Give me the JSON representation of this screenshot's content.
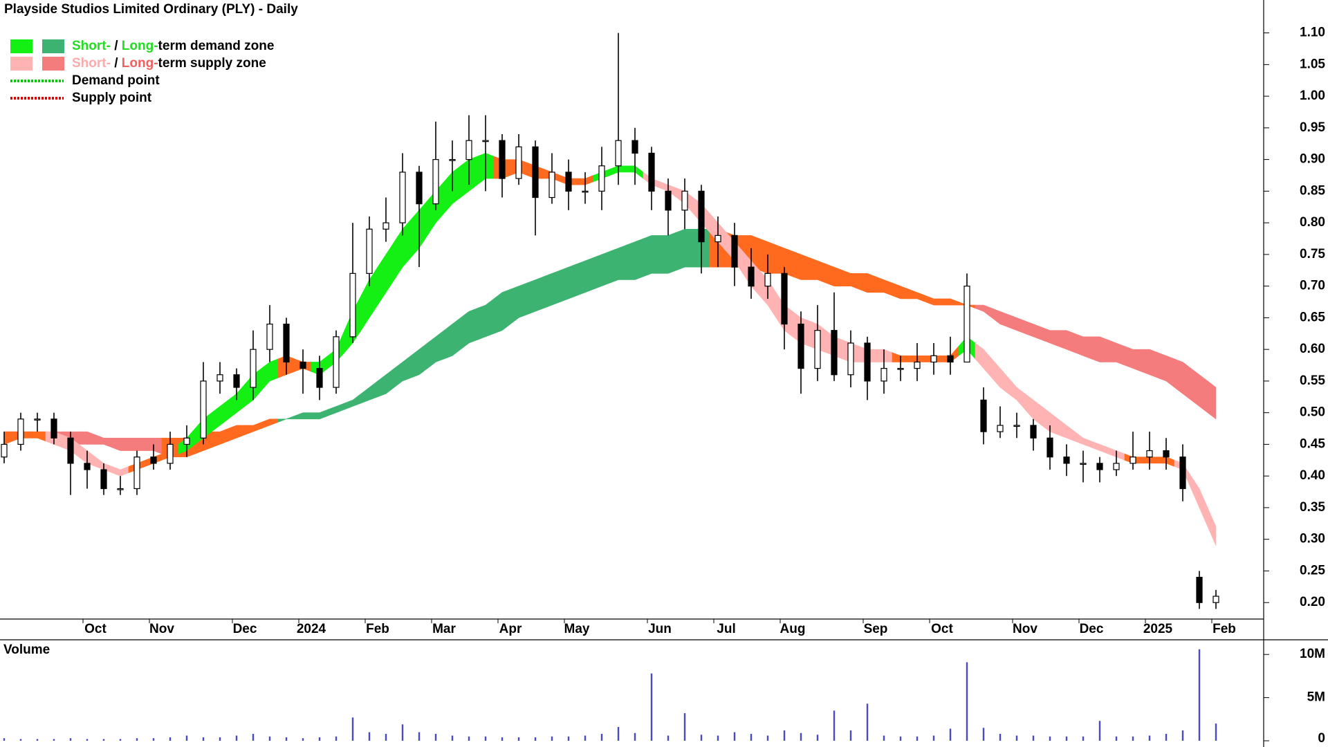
{
  "chart_data": {
    "type": "candlestick",
    "title": "Playside Studios Limited Ordinary (PLY) - Daily",
    "legend": [
      {
        "swatches": [
          "#14f014",
          "#3cb371"
        ],
        "parts": [
          {
            "text": "Short-",
            "color": "#22dd22"
          },
          {
            "text": " / ",
            "color": "#000000"
          },
          {
            "text": "Long-",
            "color": "#22dd22"
          },
          {
            "text": "term demand zone",
            "color": "#000000"
          }
        ]
      },
      {
        "swatches": [
          "#ffb3b3",
          "#f47c7c"
        ],
        "parts": [
          {
            "text": "Short-",
            "color": "#ffaaaa"
          },
          {
            "text": " / ",
            "color": "#000000"
          },
          {
            "text": "Long-",
            "color": "#f06060"
          },
          {
            "text": "term supply zone",
            "color": "#000000"
          }
        ]
      },
      {
        "line_color": "#00cc00",
        "parts": [
          {
            "text": "Demand point",
            "color": "#000000"
          }
        ]
      },
      {
        "line_color": "#e00000",
        "parts": [
          {
            "text": "Supply point",
            "color": "#000000"
          }
        ]
      }
    ],
    "categories": [
      null,
      null,
      null,
      null,
      null,
      "Oct",
      null,
      null,
      null,
      "Nov",
      null,
      null,
      null,
      null,
      "Dec",
      null,
      null,
      null,
      "2024",
      null,
      null,
      null,
      "Feb",
      null,
      null,
      null,
      "Mar",
      null,
      null,
      null,
      "Apr",
      null,
      null,
      null,
      "May",
      null,
      null,
      null,
      null,
      "Jun",
      null,
      null,
      null,
      "Jul",
      null,
      null,
      null,
      "Aug",
      null,
      null,
      null,
      null,
      "Sep",
      null,
      null,
      null,
      "Oct",
      null,
      null,
      null,
      null,
      "Nov",
      null,
      null,
      null,
      "Dec",
      null,
      null,
      null,
      "2025",
      null,
      null,
      null,
      "Feb"
    ],
    "open": [
      0.43,
      0.45,
      0.49,
      0.49,
      0.46,
      0.42,
      0.41,
      0.38,
      0.38,
      0.43,
      0.42,
      0.45,
      0.46,
      0.55,
      0.56,
      0.54,
      0.6,
      0.64,
      0.58,
      0.57,
      0.54,
      0.62,
      0.72,
      0.79,
      0.8,
      0.88,
      0.83,
      0.9,
      0.9,
      0.93,
      0.93,
      0.87,
      0.92,
      0.84,
      0.88,
      0.85,
      0.85,
      0.89,
      0.93,
      0.91,
      0.85,
      0.82,
      0.85,
      0.77,
      0.78,
      0.73,
      0.7,
      0.72,
      0.64,
      0.57,
      0.63,
      0.56,
      0.61,
      0.55,
      0.57,
      0.57,
      0.58,
      0.59,
      0.58,
      0.52,
      0.47,
      0.48,
      0.48,
      0.46,
      0.43,
      0.42,
      0.42,
      0.41,
      0.42,
      0.43,
      0.44,
      0.43,
      0.24,
      0.2
    ],
    "high": [
      0.47,
      0.5,
      0.5,
      0.5,
      0.47,
      0.44,
      0.42,
      0.4,
      0.44,
      0.45,
      0.47,
      0.48,
      0.58,
      0.58,
      0.57,
      0.63,
      0.67,
      0.65,
      0.6,
      0.59,
      0.63,
      0.8,
      0.81,
      0.84,
      0.91,
      0.89,
      0.96,
      0.93,
      0.97,
      0.97,
      0.94,
      0.94,
      0.93,
      0.91,
      0.9,
      0.88,
      0.92,
      1.1,
      0.95,
      0.92,
      0.87,
      0.87,
      0.86,
      0.81,
      0.8,
      0.76,
      0.75,
      0.73,
      0.66,
      0.67,
      0.69,
      0.63,
      0.62,
      0.6,
      0.59,
      0.61,
      0.61,
      0.62,
      0.72,
      0.54,
      0.51,
      0.5,
      0.49,
      0.48,
      0.45,
      0.44,
      0.43,
      0.44,
      0.47,
      0.47,
      0.46,
      0.45,
      0.25,
      0.22
    ],
    "low": [
      0.42,
      0.44,
      0.47,
      0.45,
      0.37,
      0.38,
      0.37,
      0.37,
      0.37,
      0.41,
      0.41,
      0.43,
      0.45,
      0.53,
      0.52,
      0.52,
      0.58,
      0.56,
      0.53,
      0.52,
      0.53,
      0.61,
      0.7,
      0.77,
      0.78,
      0.73,
      0.82,
      0.85,
      0.86,
      0.85,
      0.84,
      0.86,
      0.78,
      0.83,
      0.82,
      0.83,
      0.82,
      0.86,
      0.86,
      0.82,
      0.78,
      0.79,
      0.72,
      0.73,
      0.7,
      0.68,
      0.68,
      0.6,
      0.53,
      0.55,
      0.55,
      0.54,
      0.52,
      0.53,
      0.55,
      0.55,
      0.56,
      0.56,
      0.58,
      0.45,
      0.46,
      0.46,
      0.44,
      0.41,
      0.4,
      0.39,
      0.39,
      0.4,
      0.41,
      0.41,
      0.41,
      0.36,
      0.19,
      0.19
    ],
    "close": [
      0.45,
      0.49,
      0.49,
      0.46,
      0.42,
      0.41,
      0.38,
      0.38,
      0.43,
      0.42,
      0.45,
      0.46,
      0.55,
      0.56,
      0.54,
      0.6,
      0.64,
      0.58,
      0.57,
      0.54,
      0.62,
      0.72,
      0.79,
      0.8,
      0.88,
      0.83,
      0.9,
      0.9,
      0.93,
      0.93,
      0.87,
      0.92,
      0.84,
      0.88,
      0.85,
      0.85,
      0.89,
      0.93,
      0.91,
      0.85,
      0.82,
      0.85,
      0.77,
      0.78,
      0.73,
      0.7,
      0.72,
      0.64,
      0.57,
      0.63,
      0.56,
      0.61,
      0.55,
      0.57,
      0.57,
      0.58,
      0.59,
      0.58,
      0.7,
      0.47,
      0.48,
      0.48,
      0.46,
      0.43,
      0.42,
      0.42,
      0.41,
      0.42,
      0.43,
      0.44,
      0.43,
      0.38,
      0.2,
      0.21
    ],
    "candle_color": "#000000",
    "short_zone": {
      "upper": [
        0.47,
        0.47,
        0.47,
        0.47,
        0.46,
        0.44,
        0.42,
        0.41,
        0.42,
        0.43,
        0.44,
        0.46,
        0.49,
        0.51,
        0.53,
        0.56,
        0.58,
        0.59,
        0.58,
        0.58,
        0.6,
        0.66,
        0.71,
        0.75,
        0.79,
        0.82,
        0.85,
        0.88,
        0.9,
        0.91,
        0.9,
        0.9,
        0.89,
        0.88,
        0.87,
        0.87,
        0.88,
        0.89,
        0.89,
        0.87,
        0.86,
        0.85,
        0.83,
        0.8,
        0.77,
        0.74,
        0.71,
        0.67,
        0.65,
        0.64,
        0.62,
        0.61,
        0.6,
        0.6,
        0.59,
        0.59,
        0.59,
        0.59,
        0.62,
        0.6,
        0.57,
        0.54,
        0.52,
        0.5,
        0.48,
        0.46,
        0.45,
        0.44,
        0.43,
        0.43,
        0.43,
        0.42,
        0.38,
        0.32
      ],
      "lower": [
        0.45,
        0.46,
        0.46,
        0.45,
        0.44,
        0.42,
        0.41,
        0.4,
        0.41,
        0.42,
        0.43,
        0.44,
        0.46,
        0.48,
        0.5,
        0.52,
        0.55,
        0.56,
        0.57,
        0.56,
        0.58,
        0.61,
        0.65,
        0.69,
        0.73,
        0.76,
        0.8,
        0.83,
        0.85,
        0.87,
        0.87,
        0.88,
        0.87,
        0.87,
        0.86,
        0.86,
        0.87,
        0.88,
        0.88,
        0.86,
        0.85,
        0.83,
        0.8,
        0.77,
        0.74,
        0.7,
        0.67,
        0.63,
        0.61,
        0.6,
        0.59,
        0.58,
        0.58,
        0.58,
        0.58,
        0.58,
        0.58,
        0.58,
        0.6,
        0.57,
        0.54,
        0.52,
        0.49,
        0.47,
        0.46,
        0.45,
        0.44,
        0.43,
        0.42,
        0.42,
        0.42,
        0.41,
        0.35,
        0.29
      ],
      "colors": [
        "#ff6a1f",
        "#ff6a1f",
        "#ff6a1f",
        "#ffb3b3",
        "#ffb3b3",
        "#ffb3b3",
        "#ffb3b3",
        "#ffb3b3",
        "#ff6a1f",
        "#ff6a1f",
        "#ff6a1f",
        "#14f014",
        "#14f014",
        "#14f014",
        "#14f014",
        "#14f014",
        "#14f014",
        "#ff6a1f",
        "#ff6a1f",
        "#14f014",
        "#14f014",
        "#14f014",
        "#14f014",
        "#14f014",
        "#14f014",
        "#14f014",
        "#14f014",
        "#14f014",
        "#14f014",
        "#14f014",
        "#ff6a1f",
        "#ff6a1f",
        "#ff6a1f",
        "#ff6a1f",
        "#ff6a1f",
        "#ff6a1f",
        "#14f014",
        "#14f014",
        "#14f014",
        "#ffb3b3",
        "#ffb3b3",
        "#ffb3b3",
        "#ffb3b3",
        "#ffb3b3",
        "#ffb3b3",
        "#ffb3b3",
        "#ffb3b3",
        "#ffb3b3",
        "#ffb3b3",
        "#ffb3b3",
        "#ffb3b3",
        "#ffb3b3",
        "#ffb3b3",
        "#ffb3b3",
        "#ff6a1f",
        "#ff6a1f",
        "#ff6a1f",
        "#ff6a1f",
        "#14f014",
        "#ffb3b3",
        "#ffb3b3",
        "#ffb3b3",
        "#ffb3b3",
        "#ffb3b3",
        "#ffb3b3",
        "#ffb3b3",
        "#ffb3b3",
        "#ffb3b3",
        "#ff6a1f",
        "#ff6a1f",
        "#ff6a1f",
        "#ffb3b3",
        "#ffb3b3",
        "#ffb3b3"
      ]
    },
    "long_zone": {
      "upper": [
        0.47,
        0.47,
        0.47,
        0.47,
        0.47,
        0.47,
        0.46,
        0.46,
        0.46,
        0.46,
        0.46,
        0.46,
        0.47,
        0.47,
        0.48,
        0.48,
        0.49,
        0.49,
        0.5,
        0.5,
        0.51,
        0.52,
        0.54,
        0.56,
        0.58,
        0.6,
        0.62,
        0.64,
        0.66,
        0.67,
        0.69,
        0.7,
        0.71,
        0.72,
        0.73,
        0.74,
        0.75,
        0.76,
        0.77,
        0.78,
        0.78,
        0.79,
        0.79,
        0.79,
        0.78,
        0.78,
        0.77,
        0.76,
        0.75,
        0.74,
        0.73,
        0.72,
        0.72,
        0.71,
        0.7,
        0.69,
        0.68,
        0.68,
        0.67,
        0.67,
        0.66,
        0.65,
        0.64,
        0.63,
        0.63,
        0.62,
        0.62,
        0.61,
        0.6,
        0.6,
        0.59,
        0.58,
        0.56,
        0.54
      ],
      "lower": [
        0.45,
        0.46,
        0.46,
        0.46,
        0.45,
        0.45,
        0.45,
        0.44,
        0.44,
        0.44,
        0.43,
        0.43,
        0.44,
        0.45,
        0.46,
        0.47,
        0.48,
        0.49,
        0.49,
        0.49,
        0.5,
        0.51,
        0.52,
        0.53,
        0.55,
        0.56,
        0.58,
        0.59,
        0.61,
        0.62,
        0.63,
        0.65,
        0.66,
        0.67,
        0.68,
        0.69,
        0.7,
        0.71,
        0.71,
        0.72,
        0.72,
        0.73,
        0.73,
        0.73,
        0.73,
        0.73,
        0.72,
        0.72,
        0.71,
        0.71,
        0.7,
        0.7,
        0.69,
        0.69,
        0.68,
        0.68,
        0.67,
        0.67,
        0.67,
        0.66,
        0.64,
        0.63,
        0.62,
        0.61,
        0.6,
        0.59,
        0.58,
        0.58,
        0.57,
        0.56,
        0.55,
        0.53,
        0.51,
        0.49
      ],
      "colors": [
        "#f47c7c",
        "#f47c7c",
        "#f47c7c",
        "#f47c7c",
        "#f47c7c",
        "#f47c7c",
        "#f47c7c",
        "#f47c7c",
        "#f47c7c",
        "#f47c7c",
        "#ff6a1f",
        "#ff6a1f",
        "#ff6a1f",
        "#ff6a1f",
        "#ff6a1f",
        "#ff6a1f",
        "#ff6a1f",
        "#3cb371",
        "#3cb371",
        "#3cb371",
        "#3cb371",
        "#3cb371",
        "#3cb371",
        "#3cb371",
        "#3cb371",
        "#3cb371",
        "#3cb371",
        "#3cb371",
        "#3cb371",
        "#3cb371",
        "#3cb371",
        "#3cb371",
        "#3cb371",
        "#3cb371",
        "#3cb371",
        "#3cb371",
        "#3cb371",
        "#3cb371",
        "#3cb371",
        "#3cb371",
        "#3cb371",
        "#3cb371",
        "#3cb371",
        "#ff6a1f",
        "#ff6a1f",
        "#ff6a1f",
        "#ff6a1f",
        "#ff6a1f",
        "#ff6a1f",
        "#ff6a1f",
        "#ff6a1f",
        "#ff6a1f",
        "#ff6a1f",
        "#ff6a1f",
        "#ff6a1f",
        "#ff6a1f",
        "#ff6a1f",
        "#ff6a1f",
        "#ff6a1f",
        "#f47c7c",
        "#f47c7c",
        "#f47c7c",
        "#f47c7c",
        "#f47c7c",
        "#f47c7c",
        "#f47c7c",
        "#f47c7c",
        "#f47c7c",
        "#f47c7c",
        "#f47c7c",
        "#f47c7c",
        "#f47c7c",
        "#f47c7c",
        "#f47c7c"
      ]
    },
    "ylim": [
      0.174,
      1.152
    ],
    "yticks": [
      {
        "value": 0.2,
        "label": "0.20"
      },
      {
        "value": 0.25,
        "label": "0.25"
      },
      {
        "value": 0.3,
        "label": "0.30"
      },
      {
        "value": 0.35,
        "label": "0.35"
      },
      {
        "value": 0.4,
        "label": "0.40"
      },
      {
        "value": 0.45,
        "label": "0.45"
      },
      {
        "value": 0.5,
        "label": "0.50"
      },
      {
        "value": 0.55,
        "label": "0.55"
      },
      {
        "value": 0.6,
        "label": "0.60"
      },
      {
        "value": 0.65,
        "label": "0.65"
      },
      {
        "value": 0.7,
        "label": "0.70"
      },
      {
        "value": 0.75,
        "label": "0.75"
      },
      {
        "value": 0.8,
        "label": "0.80"
      },
      {
        "value": 0.85,
        "label": "0.85"
      },
      {
        "value": 0.9,
        "label": "0.90"
      },
      {
        "value": 0.95,
        "label": "0.95"
      },
      {
        "value": 1.0,
        "label": "1.00"
      },
      {
        "value": 1.05,
        "label": "1.05"
      },
      {
        "value": 1.1,
        "label": "1.10"
      }
    ],
    "volume": {
      "title": "Volume",
      "title_color": "#4b0082",
      "color": "#4a4ac8",
      "values": [
        300000,
        200000,
        200000,
        200000,
        300000,
        200000,
        200000,
        200000,
        300000,
        300000,
        400000,
        600000,
        400000,
        400000,
        600000,
        800000,
        500000,
        400000,
        300000,
        400000,
        500000,
        2700000,
        1000000,
        800000,
        1900000,
        1000000,
        800000,
        600000,
        500000,
        500000,
        400000,
        400000,
        400000,
        500000,
        500000,
        600000,
        800000,
        1600000,
        900000,
        7800000,
        600000,
        3200000,
        700000,
        600000,
        1000000,
        800000,
        600000,
        1200000,
        900000,
        700000,
        3500000,
        1200000,
        4300000,
        600000,
        500000,
        500000,
        600000,
        1400000,
        9100000,
        1500000,
        800000,
        600000,
        600000,
        500000,
        500000,
        500000,
        2300000,
        500000,
        500000,
        600000,
        800000,
        1200000,
        10600000,
        2000000
      ],
      "ylim": [
        0,
        11700000
      ],
      "yticks": [
        0,
        {
          "value": 5000000,
          "label": "5M"
        },
        {
          "value": 10000000,
          "label": "10M"
        }
      ]
    }
  }
}
